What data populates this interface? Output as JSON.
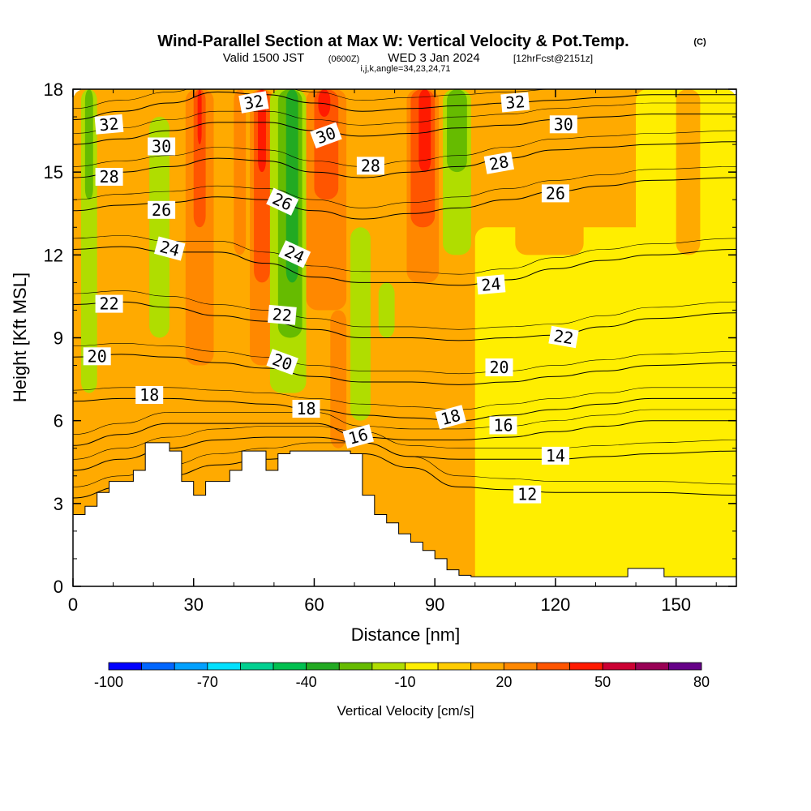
{
  "chart_data": {
    "type": "contour_cross_section",
    "title": "Wind-Parallel Section at Max W: Vertical Velocity & Pot.Temp.",
    "title_units": "(C)",
    "subtitle_prefix": "Valid 1500 JST",
    "subtitle_z": "(0600Z)",
    "subtitle_date": "WED 3 Jan 2024",
    "subtitle_fcst": "[12hrFcst@2151z]",
    "subtitle_indices": "i,j,k,angle=34,23,24,71",
    "xlabel": "Distance [nm]",
    "ylabel": "Height [Kft MSL]",
    "xlim": [
      0,
      165
    ],
    "ylim": [
      0,
      18
    ],
    "x_ticks": [
      "0",
      "30",
      "60",
      "90",
      "120",
      "150"
    ],
    "x_tick_values": [
      0,
      30,
      60,
      90,
      120,
      150
    ],
    "y_ticks": [
      "0",
      "3",
      "6",
      "9",
      "12",
      "15",
      "18"
    ],
    "y_tick_values": [
      0,
      3,
      6,
      9,
      12,
      15,
      18
    ],
    "colorbar": {
      "label": "Vertical Velocity [cm/s]",
      "tick_labels": [
        "-100",
        "-70",
        "-40",
        "-10",
        "20",
        "50",
        "80"
      ],
      "tick_values": [
        -100,
        -70,
        -40,
        -10,
        20,
        50,
        80
      ],
      "levels": [
        -100,
        -90,
        -80,
        -70,
        -60,
        -50,
        -40,
        -30,
        -20,
        -10,
        0,
        10,
        20,
        30,
        40,
        50,
        60,
        70,
        80
      ],
      "colors": [
        "#0000ff",
        "#0066ff",
        "#00a0ff",
        "#00e0ff",
        "#00d090",
        "#00c050",
        "#22aa22",
        "#66bb00",
        "#b0dd00",
        "#ffee00",
        "#ffcc00",
        "#ffaa00",
        "#ff8800",
        "#ff5500",
        "#ff1a00",
        "#cc0033",
        "#990055",
        "#660088"
      ]
    },
    "field_colors": {
      "neutral": "#ffcc00",
      "weak_up": "#ffaa00",
      "up": "#ff8800",
      "strong_up": "#ff5500",
      "max_up": "#ff1a00",
      "weak_down": "#ffee00",
      "down": "#b0dd00",
      "strong_down": "#66bb00",
      "max_down": "#22aa22"
    },
    "terrain": [
      [
        0,
        2.6
      ],
      [
        3,
        2.6
      ],
      [
        3,
        2.9
      ],
      [
        6,
        2.9
      ],
      [
        6,
        3.4
      ],
      [
        9,
        3.4
      ],
      [
        9,
        3.8
      ],
      [
        15,
        3.8
      ],
      [
        15,
        4.2
      ],
      [
        18,
        4.2
      ],
      [
        18,
        5.2
      ],
      [
        24,
        5.2
      ],
      [
        24,
        4.9
      ],
      [
        27,
        4.9
      ],
      [
        27,
        3.8
      ],
      [
        30,
        3.8
      ],
      [
        30,
        3.3
      ],
      [
        33,
        3.3
      ],
      [
        33,
        3.8
      ],
      [
        39,
        3.8
      ],
      [
        39,
        4.2
      ],
      [
        42,
        4.2
      ],
      [
        42,
        4.9
      ],
      [
        48,
        4.9
      ],
      [
        48,
        4.2
      ],
      [
        51,
        4.2
      ],
      [
        51,
        4.8
      ],
      [
        54,
        4.8
      ],
      [
        54,
        4.9
      ],
      [
        69,
        4.9
      ],
      [
        69,
        4.8
      ],
      [
        72,
        4.8
      ],
      [
        72,
        3.3
      ],
      [
        75,
        3.3
      ],
      [
        75,
        2.6
      ],
      [
        78,
        2.6
      ],
      [
        78,
        2.3
      ],
      [
        81,
        2.3
      ],
      [
        81,
        1.9
      ],
      [
        84,
        1.9
      ],
      [
        84,
        1.6
      ],
      [
        87,
        1.6
      ],
      [
        87,
        1.3
      ],
      [
        90,
        1.3
      ],
      [
        90,
        1.0
      ],
      [
        93,
        1.0
      ],
      [
        93,
        0.6
      ],
      [
        96,
        0.6
      ],
      [
        96,
        0.4
      ],
      [
        99,
        0.4
      ],
      [
        99,
        0.35
      ],
      [
        138,
        0.35
      ],
      [
        138,
        0.65
      ],
      [
        147,
        0.65
      ],
      [
        147,
        0.35
      ],
      [
        165,
        0.35
      ],
      [
        165,
        0
      ],
      [
        0,
        0
      ]
    ],
    "isentropes": [
      {
        "label": "32",
        "y": [
          16.9,
          17.2,
          17.5,
          17.9,
          17.8,
          17.5,
          17.2,
          17.3,
          17.4,
          17.5,
          17.6,
          17.7,
          17.8,
          17.8
        ]
      },
      {
        "label": "30",
        "y": [
          16.0,
          16.2,
          16.5,
          16.8,
          16.8,
          16.5,
          16.3,
          16.4,
          16.6,
          16.7,
          16.9,
          17.0,
          17.1,
          17.1
        ]
      },
      {
        "label": "28",
        "y": [
          14.8,
          15.0,
          15.2,
          15.5,
          15.4,
          15.0,
          14.8,
          15.0,
          15.2,
          15.5,
          15.8,
          15.9,
          16.0,
          16.1
        ]
      },
      {
        "label": "26",
        "y": [
          13.6,
          13.8,
          13.9,
          14.1,
          14.0,
          13.6,
          13.3,
          13.5,
          13.7,
          14.0,
          14.3,
          14.5,
          14.7,
          14.8
        ]
      },
      {
        "label": "24",
        "y": [
          12.2,
          12.3,
          12.1,
          12.1,
          11.7,
          11.2,
          11.0,
          11.0,
          10.9,
          11.1,
          11.5,
          11.8,
          12.0,
          12.2
        ]
      },
      {
        "label": "22",
        "y": [
          10.2,
          10.3,
          10.1,
          9.8,
          9.6,
          9.3,
          9.0,
          9.0,
          8.9,
          9.0,
          9.1,
          9.4,
          9.7,
          9.9
        ]
      },
      {
        "label": "20",
        "y": [
          8.3,
          8.4,
          8.3,
          8.1,
          7.9,
          7.6,
          7.4,
          7.4,
          7.3,
          7.4,
          7.6,
          7.8,
          8.0,
          8.1
        ]
      },
      {
        "label": "18",
        "y": [
          6.7,
          6.8,
          6.8,
          6.7,
          6.6,
          6.4,
          6.2,
          6.1,
          6.0,
          6.2,
          6.4,
          6.6,
          6.8,
          6.8
        ]
      },
      {
        "label": "16",
        "y": [
          5.1,
          5.5,
          5.9,
          5.9,
          5.9,
          5.9,
          5.4,
          5.3,
          5.3,
          5.4,
          5.6,
          5.8,
          6.0,
          6.0
        ]
      },
      {
        "label": "14",
        "y": [
          4.2,
          4.6,
          5.0,
          5.3,
          5.4,
          5.4,
          5.2,
          4.7,
          4.6,
          4.6,
          4.6,
          4.7,
          4.8,
          4.9
        ]
      },
      {
        "label": "12",
        "y": [
          3.2,
          3.6,
          4.0,
          4.4,
          4.6,
          4.8,
          4.8,
          4.3,
          3.6,
          3.5,
          3.4,
          3.4,
          3.4,
          3.3
        ]
      }
    ],
    "isentrope_x": [
      0,
      12,
      24,
      36,
      48,
      60,
      72,
      84,
      96,
      108,
      120,
      132,
      144,
      165
    ],
    "label_positions": [
      {
        "label": "32",
        "x": 9,
        "y": 16.7,
        "rot": -5
      },
      {
        "label": "30",
        "x": 22,
        "y": 15.9,
        "rot": 0
      },
      {
        "label": "28",
        "x": 9,
        "y": 14.8,
        "rot": 0
      },
      {
        "label": "26",
        "x": 22,
        "y": 13.6,
        "rot": 0
      },
      {
        "label": "24",
        "x": 24,
        "y": 12.2,
        "rot": 15
      },
      {
        "label": "22",
        "x": 9,
        "y": 10.2,
        "rot": 0
      },
      {
        "label": "20",
        "x": 6,
        "y": 8.3,
        "rot": 0
      },
      {
        "label": "18",
        "x": 19,
        "y": 6.9,
        "rot": 0
      },
      {
        "label": "32",
        "x": 45,
        "y": 17.5,
        "rot": -10
      },
      {
        "label": "30",
        "x": 63,
        "y": 16.3,
        "rot": -20
      },
      {
        "label": "26",
        "x": 52,
        "y": 13.9,
        "rot": 25
      },
      {
        "label": "24",
        "x": 55,
        "y": 12.0,
        "rot": 25
      },
      {
        "label": "22",
        "x": 52,
        "y": 9.8,
        "rot": 5
      },
      {
        "label": "20",
        "x": 52,
        "y": 8.1,
        "rot": 20
      },
      {
        "label": "18",
        "x": 58,
        "y": 6.4,
        "rot": 0
      },
      {
        "label": "28",
        "x": 74,
        "y": 15.2,
        "rot": 0
      },
      {
        "label": "16",
        "x": 71,
        "y": 5.4,
        "rot": -15
      },
      {
        "label": "32",
        "x": 110,
        "y": 17.5,
        "rot": -5
      },
      {
        "label": "30",
        "x": 122,
        "y": 16.7,
        "rot": 0
      },
      {
        "label": "28",
        "x": 106,
        "y": 15.3,
        "rot": -10
      },
      {
        "label": "26",
        "x": 120,
        "y": 14.2,
        "rot": 0
      },
      {
        "label": "24",
        "x": 104,
        "y": 10.9,
        "rot": -5
      },
      {
        "label": "22",
        "x": 122,
        "y": 9.0,
        "rot": 10
      },
      {
        "label": "20",
        "x": 106,
        "y": 7.9,
        "rot": 0
      },
      {
        "label": "18",
        "x": 94,
        "y": 6.1,
        "rot": -15
      },
      {
        "label": "16",
        "x": 107,
        "y": 5.8,
        "rot": 0
      },
      {
        "label": "14",
        "x": 120,
        "y": 4.7,
        "rot": 0
      },
      {
        "label": "12",
        "x": 113,
        "y": 3.3,
        "rot": 0
      }
    ],
    "wband_cells": [
      {
        "cat": "weak_up",
        "x": [
          0,
          165
        ],
        "y": [
          0,
          18
        ]
      },
      {
        "cat": "weak_down",
        "x": [
          100,
          165
        ],
        "y": [
          0,
          13
        ]
      },
      {
        "cat": "weak_down",
        "x": [
          140,
          165
        ],
        "y": [
          8,
          18
        ]
      },
      {
        "cat": "down",
        "x": [
          2,
          6
        ],
        "y": [
          7,
          18
        ]
      },
      {
        "cat": "strong_down",
        "x": [
          3,
          5
        ],
        "y": [
          14,
          18
        ]
      },
      {
        "cat": "down",
        "x": [
          19,
          24
        ],
        "y": [
          9,
          17
        ]
      },
      {
        "cat": "up",
        "x": [
          28,
          35
        ],
        "y": [
          8,
          18
        ]
      },
      {
        "cat": "strong_up",
        "x": [
          30,
          33
        ],
        "y": [
          13,
          18
        ]
      },
      {
        "cat": "max_up",
        "x": [
          31,
          32
        ],
        "y": [
          16,
          18
        ]
      },
      {
        "cat": "up",
        "x": [
          40,
          43
        ],
        "y": [
          12,
          18
        ]
      },
      {
        "cat": "up",
        "x": [
          44,
          50
        ],
        "y": [
          8,
          18
        ]
      },
      {
        "cat": "strong_up",
        "x": [
          45,
          49
        ],
        "y": [
          11,
          18
        ]
      },
      {
        "cat": "max_up",
        "x": [
          46,
          48
        ],
        "y": [
          15,
          18
        ]
      },
      {
        "cat": "down",
        "x": [
          49,
          58
        ],
        "y": [
          7,
          18
        ]
      },
      {
        "cat": "strong_down",
        "x": [
          51,
          57
        ],
        "y": [
          9,
          18
        ]
      },
      {
        "cat": "max_down",
        "x": [
          53,
          56
        ],
        "y": [
          11,
          18
        ]
      },
      {
        "cat": "up",
        "x": [
          58,
          68
        ],
        "y": [
          10,
          18
        ]
      },
      {
        "cat": "strong_up",
        "x": [
          60,
          66
        ],
        "y": [
          14,
          18
        ]
      },
      {
        "cat": "max_up",
        "x": [
          61,
          64
        ],
        "y": [
          17,
          18
        ]
      },
      {
        "cat": "up",
        "x": [
          64,
          68
        ],
        "y": [
          5,
          10
        ]
      },
      {
        "cat": "down",
        "x": [
          69,
          74
        ],
        "y": [
          6,
          13
        ]
      },
      {
        "cat": "down",
        "x": [
          76,
          80
        ],
        "y": [
          9,
          11
        ]
      },
      {
        "cat": "up",
        "x": [
          83,
          91
        ],
        "y": [
          11,
          18
        ]
      },
      {
        "cat": "strong_up",
        "x": [
          84,
          90
        ],
        "y": [
          13,
          18
        ]
      },
      {
        "cat": "max_up",
        "x": [
          86,
          89
        ],
        "y": [
          15,
          18
        ]
      },
      {
        "cat": "down",
        "x": [
          92,
          99
        ],
        "y": [
          12,
          18
        ]
      },
      {
        "cat": "strong_down",
        "x": [
          93,
          98
        ],
        "y": [
          15,
          18
        ]
      },
      {
        "cat": "weak_up",
        "x": [
          150,
          156
        ],
        "y": [
          12,
          18
        ]
      },
      {
        "cat": "weak_up",
        "x": [
          110,
          127
        ],
        "y": [
          12,
          14
        ]
      }
    ]
  }
}
